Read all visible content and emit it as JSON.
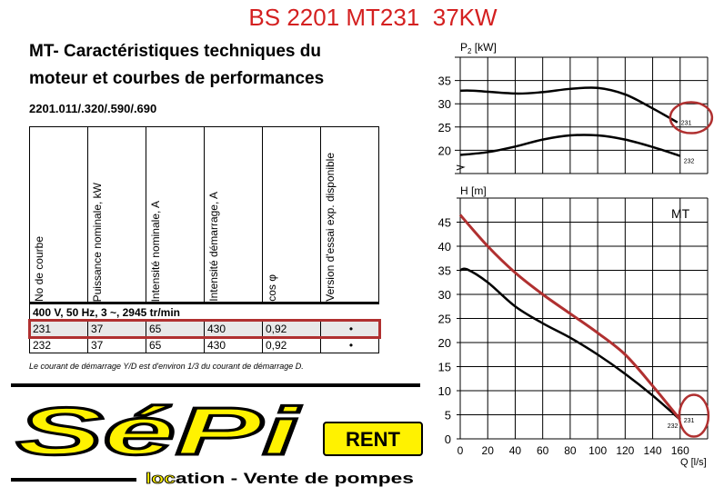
{
  "header": {
    "title": "BS 2201 MT231  37KW"
  },
  "doc": {
    "title_line1": "MT- Caractéristiques techniques du",
    "title_line2": "moteur et courbes de performances",
    "models": "2201.011/.320/.590/.690",
    "footnote": "Le courant de démarrage Y/D est d'environ 1/3 du courant de démarrage D."
  },
  "table": {
    "columns": [
      "No de courbe",
      "Puissance nominale, kW",
      "Intensité nominale, A",
      "Intensité démarrage, A",
      "cos φ",
      "Version d'essai exp. disponible"
    ],
    "condition": "400 V, 50 Hz, 3 ~, 2945 tr/min",
    "rows": [
      [
        "231",
        "37",
        "65",
        "430",
        "0,92",
        "•"
      ],
      [
        "232",
        "37",
        "65",
        "430",
        "0,92",
        "•"
      ]
    ],
    "highlighted_row": "231",
    "highlight_color": "#b03030"
  },
  "logo": {
    "brand": "SéPi",
    "badge": "RENT",
    "tagline_highlight": "loc",
    "tagline": "ation - Vente de pompes",
    "color": "#fff200"
  },
  "chart_data": [
    {
      "type": "line",
      "ylabel": "P2 [kW]",
      "xlim": [
        0,
        180
      ],
      "ylim": [
        15,
        40
      ],
      "yticks": [
        20,
        25,
        30,
        35
      ],
      "grid": true,
      "series": [
        {
          "name": "231",
          "x": [
            0,
            10,
            40,
            60,
            80,
            100,
            120,
            140,
            158
          ],
          "y": [
            32.8,
            32.8,
            32.2,
            32.5,
            33.2,
            33.4,
            32,
            29,
            26
          ],
          "color": "#000000",
          "circled": true
        },
        {
          "name": "232",
          "x": [
            0,
            20,
            40,
            60,
            80,
            100,
            120,
            140,
            160
          ],
          "y": [
            19,
            19.6,
            20.8,
            22.3,
            23.2,
            23.2,
            22.3,
            20.7,
            18.8
          ],
          "color": "#000000"
        }
      ]
    },
    {
      "type": "line",
      "ylabel": "H [m]",
      "xlabel": "Q [l/s]",
      "annotation": "MT",
      "xlim": [
        0,
        180
      ],
      "ylim": [
        0,
        50
      ],
      "xticks": [
        0,
        20,
        40,
        60,
        80,
        100,
        120,
        140,
        160
      ],
      "yticks": [
        0,
        5,
        10,
        15,
        20,
        25,
        30,
        35,
        40,
        45
      ],
      "grid": true,
      "series": [
        {
          "name": "231",
          "x": [
            0,
            20,
            40,
            60,
            80,
            100,
            120,
            140,
            160
          ],
          "y": [
            46.5,
            40,
            34.5,
            30,
            26,
            22,
            17.5,
            11,
            4
          ],
          "color": "#b03030",
          "circled": true
        },
        {
          "name": "232",
          "x": [
            0,
            5,
            20,
            40,
            60,
            80,
            100,
            120,
            140,
            160
          ],
          "y": [
            35,
            35.2,
            32.5,
            27.5,
            24,
            21,
            17.5,
            13.5,
            9,
            4
          ],
          "color": "#000000"
        }
      ]
    }
  ]
}
